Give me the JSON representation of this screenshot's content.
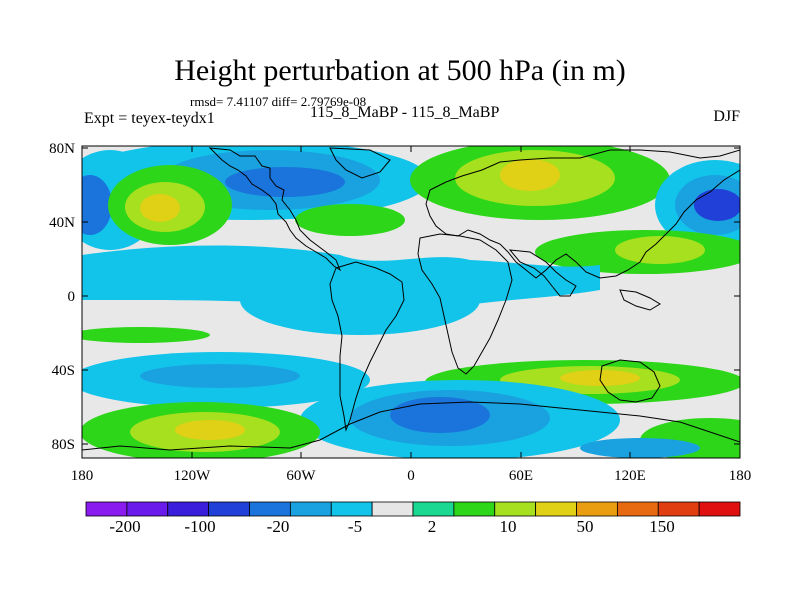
{
  "header": {
    "title": "Height perturbation at 500 hPa (in m)",
    "stats": "rmsd= 7.41107 diff= 2.79769e-08",
    "expt": "Expt = teyex-teydx1",
    "case": "115_8_MaBP - 115_8_MaBP",
    "season": "DJF"
  },
  "axes": {
    "y_ticks": [
      "80N",
      "40N",
      "0",
      "40S",
      "80S"
    ],
    "x_ticks": [
      "180",
      "120W",
      "60W",
      "0",
      "60E",
      "120E",
      "180"
    ]
  },
  "colorbar": {
    "colors": [
      "#8a1cf0",
      "#6a1aea",
      "#3a1edc",
      "#2040d8",
      "#1a74dc",
      "#1aa2e0",
      "#12c4ea",
      "#e6e6e6",
      "#1ad891",
      "#2ed61a",
      "#a6e01e",
      "#e0d016",
      "#e89e10",
      "#e86a10",
      "#e03e10",
      "#e01010"
    ],
    "labels": [
      "-200",
      "-100",
      "-20",
      "-5",
      "2",
      "10",
      "50",
      "150"
    ]
  },
  "map": {
    "region": "global",
    "palette": {
      "background": "#e8e8e8",
      "cyan": "#12c4ea",
      "light_blue": "#1aa2e0",
      "blue": "#1a74dc",
      "dark_blue": "#2040d8",
      "teal": "#1ad891",
      "green": "#2ed61a",
      "yellow_green": "#a6e01e",
      "yellow": "#e0d016",
      "outline": "#000000"
    }
  }
}
